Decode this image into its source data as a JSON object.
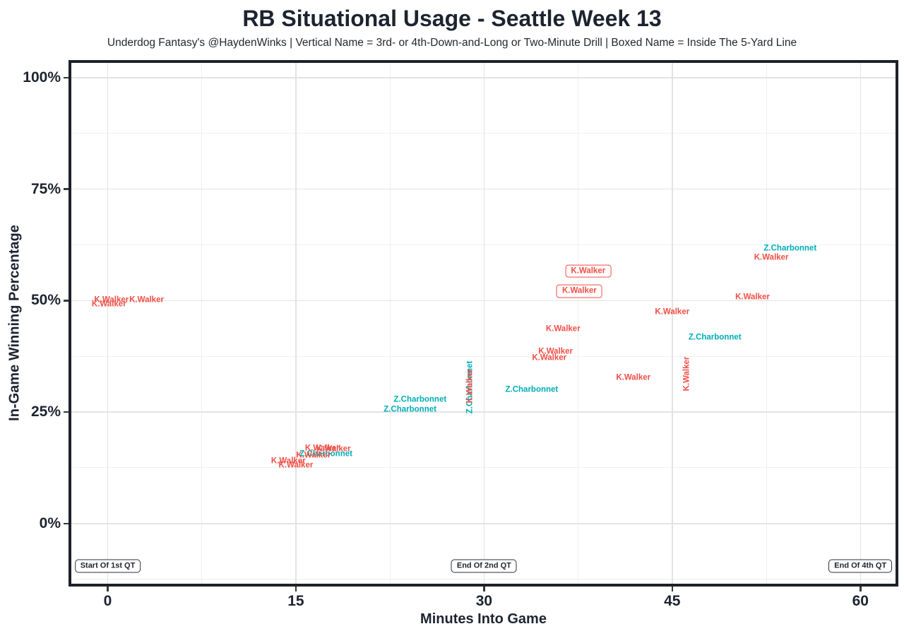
{
  "header": {
    "title": "RB Situational Usage - Seattle Week 13",
    "subtitle": "Underdog Fantasy's @HaydenWinks | Vertical Name = 3rd- or 4th-Down-and-Long or Two-Minute Drill | Boxed Name = Inside The 5-Yard Line"
  },
  "chart_data": {
    "type": "scatter",
    "title": "RB Situational Usage - Seattle Week 13",
    "subtitle": "Underdog Fantasy's @HaydenWinks | Vertical Name = 3rd- or 4th-Down-and-Long or Two-Minute Drill | Boxed Name = Inside The 5-Yard Line",
    "xlabel": "Minutes Into Game",
    "ylabel": "In-Game Winning Percentage",
    "xlim": [
      -2.9,
      62.8
    ],
    "ylim": [
      -13.5,
      103.3
    ],
    "grid": true,
    "legend": "none",
    "point_marker": "player-name-text",
    "x_ticks": [
      {
        "v": 0,
        "label": "0"
      },
      {
        "v": 15,
        "label": "15"
      },
      {
        "v": 30,
        "label": "30"
      },
      {
        "v": 45,
        "label": "45"
      },
      {
        "v": 60,
        "label": "60"
      }
    ],
    "y_ticks": [
      {
        "v": 0,
        "label": "0%"
      },
      {
        "v": 25,
        "label": "25%"
      },
      {
        "v": 50,
        "label": "50%"
      },
      {
        "v": 75,
        "label": "75%"
      },
      {
        "v": 100,
        "label": "100%"
      }
    ],
    "x_minor_gridlines": [
      7.5,
      22.5,
      37.5,
      52.5
    ],
    "y_minor_gridlines": [
      -12.5,
      12.5,
      37.5,
      62.5,
      87.5
    ],
    "series": [
      {
        "name": "Z.Charbonnet",
        "color": "#00adb8",
        "points": [
          {
            "x": 17.4,
            "y": 15.5,
            "style": "plain"
          },
          {
            "x": 24.1,
            "y": 25.5,
            "style": "plain"
          },
          {
            "x": 24.9,
            "y": 27.7,
            "style": "plain"
          },
          {
            "x": 28.9,
            "y": 30.6,
            "style": "vertical"
          },
          {
            "x": 33.8,
            "y": 30.0,
            "style": "plain"
          },
          {
            "x": 48.4,
            "y": 41.7,
            "style": "plain"
          },
          {
            "x": 54.4,
            "y": 61.6,
            "style": "plain"
          }
        ]
      },
      {
        "name": "K.Walker",
        "color": "#ef4e45",
        "points": [
          {
            "x": 0.1,
            "y": 49.1,
            "style": "plain"
          },
          {
            "x": 0.3,
            "y": 50.1,
            "style": "plain"
          },
          {
            "x": 3.1,
            "y": 50.1,
            "style": "plain"
          },
          {
            "x": 14.4,
            "y": 13.9,
            "style": "plain"
          },
          {
            "x": 15.0,
            "y": 13.0,
            "style": "plain"
          },
          {
            "x": 16.4,
            "y": 15.2,
            "style": "plain"
          },
          {
            "x": 17.1,
            "y": 16.8,
            "style": "plain"
          },
          {
            "x": 18.0,
            "y": 16.6,
            "style": "plain"
          },
          {
            "x": 28.9,
            "y": 30.9,
            "style": "vertical"
          },
          {
            "x": 35.2,
            "y": 37.1,
            "style": "plain"
          },
          {
            "x": 35.7,
            "y": 38.5,
            "style": "plain"
          },
          {
            "x": 36.3,
            "y": 43.6,
            "style": "plain"
          },
          {
            "x": 37.6,
            "y": 52.1,
            "style": "boxed"
          },
          {
            "x": 38.3,
            "y": 56.6,
            "style": "boxed"
          },
          {
            "x": 41.9,
            "y": 32.6,
            "style": "plain"
          },
          {
            "x": 45.0,
            "y": 47.4,
            "style": "plain"
          },
          {
            "x": 46.2,
            "y": 33.6,
            "style": "vertical"
          },
          {
            "x": 51.4,
            "y": 50.7,
            "style": "plain"
          },
          {
            "x": 52.9,
            "y": 59.6,
            "style": "plain"
          }
        ]
      }
    ],
    "annotations": [
      {
        "label": "Start Of 1st QT",
        "x": 0,
        "y": -9.5
      },
      {
        "label": "End Of 2nd QT",
        "x": 30,
        "y": -9.5
      },
      {
        "label": "End Of 4th QT",
        "x": 60,
        "y": -9.5
      }
    ]
  },
  "colors": {
    "walker_red": "#ef4e45",
    "charbonnet_teal": "#00adb8",
    "text_dark": "#1d2430",
    "plot_border": "#1c212b",
    "grid_major": "#e3e3e3",
    "grid_minor": "#f0f0f0",
    "annotation_border": "#2b2f36",
    "background": "#ffffff"
  }
}
